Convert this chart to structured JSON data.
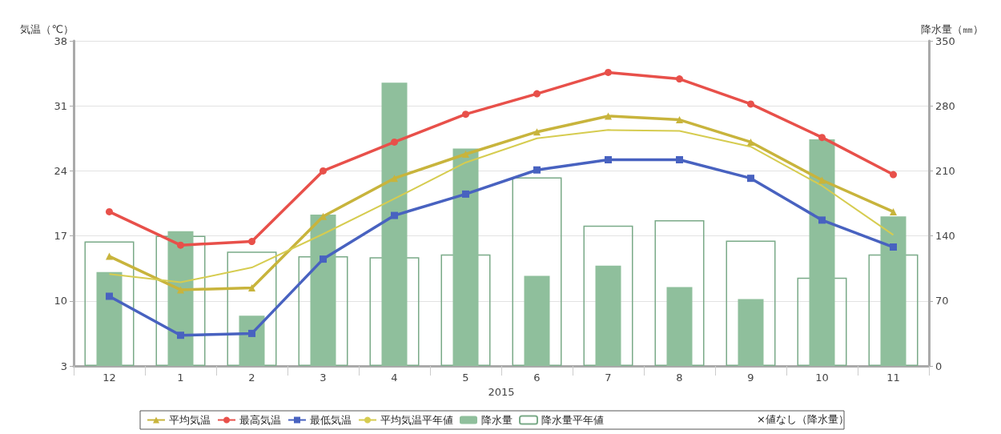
{
  "chart_data": {
    "type": "line",
    "categories": [
      "12",
      "1",
      "2",
      "3",
      "4",
      "5",
      "6",
      "7",
      "8",
      "9",
      "10",
      "11"
    ],
    "xlabel": "2015",
    "ylabel": "気温（℃）",
    "y2label": "降水量（㎜）",
    "ylim": [
      3,
      38
    ],
    "yticks": [
      3,
      10,
      17,
      24,
      31,
      38
    ],
    "y2lim": [
      0,
      350
    ],
    "y2ticks": [
      0,
      70,
      140,
      210,
      280,
      350
    ],
    "grid": "y",
    "legend": "bottom",
    "annotations": [
      "×値なし（降水量）"
    ],
    "series": [
      {
        "name": "平均気温",
        "color": "#c8b43c",
        "marker": "triangle",
        "values": [
          14.8,
          11.2,
          11.4,
          19.1,
          23.2,
          25.8,
          28.2,
          29.9,
          29.5,
          27.1,
          23.0,
          19.6
        ]
      },
      {
        "name": "最高気温",
        "color": "#e8504a",
        "marker": "circle",
        "values": [
          19.6,
          16.0,
          16.4,
          24.0,
          27.1,
          30.1,
          32.3,
          34.6,
          33.9,
          31.2,
          27.6,
          23.6
        ]
      },
      {
        "name": "最低気温",
        "color": "#4862c0",
        "marker": "square",
        "values": [
          10.5,
          6.3,
          6.5,
          14.5,
          19.2,
          21.5,
          24.1,
          25.2,
          25.2,
          23.2,
          18.7,
          15.8
        ]
      },
      {
        "name": "平均気温平年値",
        "color": "#d6cc50",
        "marker": "none",
        "values": [
          12.9,
          12.0,
          13.6,
          17.2,
          21.0,
          24.9,
          27.5,
          28.4,
          28.3,
          26.6,
          22.4,
          17.1
        ]
      },
      {
        "name": "降水量",
        "type": "bar",
        "axis": "y2",
        "color": "#8fbf9c",
        "values": [
          101,
          145,
          54,
          163,
          305,
          234,
          97,
          108,
          85,
          72,
          244,
          161
        ]
      },
      {
        "name": "降水量平年値",
        "type": "bar",
        "axis": "y2",
        "color": "#7aaa88",
        "values": [
          134,
          140,
          123,
          118,
          117,
          120,
          203,
          151,
          157,
          135,
          95,
          120
        ]
      }
    ]
  }
}
